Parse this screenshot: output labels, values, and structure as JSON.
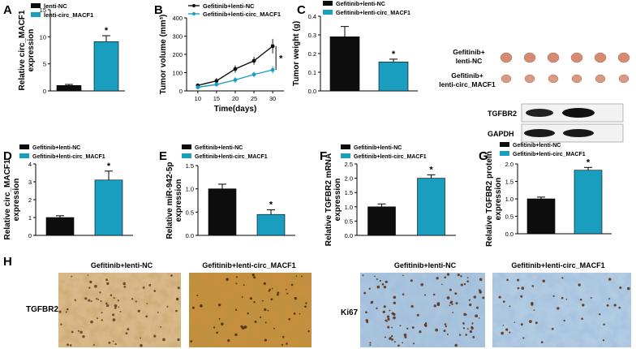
{
  "colors": {
    "black": "#0d0d0d",
    "teal": "#199ec0",
    "ihc_bg_tgf": "#d9b784",
    "ihc_bg_ki": "#a9c6de"
  },
  "panel_letters": [
    "A",
    "B",
    "C",
    "D",
    "E",
    "F",
    "G",
    "H"
  ],
  "chart_data": [
    {
      "type": "bar",
      "panel": "A",
      "ylabel": "Relative circ_MACF1 expression",
      "ylim": [
        0,
        15
      ],
      "yticks": [
        "0",
        "5",
        "10",
        "15"
      ],
      "legend": [
        "lenti-NC",
        "lenti-circ_MACF1"
      ],
      "categories": [
        "lenti-NC",
        "lenti-circ_MACF1"
      ],
      "values": [
        1.0,
        9.1
      ],
      "errors": [
        0.2,
        1.1
      ],
      "significance": "*"
    },
    {
      "type": "line",
      "panel": "B",
      "xlabel": "Time(days)",
      "ylabel": "Tumor volume (mm³)",
      "xlim": [
        10,
        30
      ],
      "ylim": [
        0,
        400
      ],
      "xticks": [
        "10",
        "15",
        "20",
        "25",
        "30"
      ],
      "yticks": [
        "0",
        "100",
        "200",
        "300",
        "400"
      ],
      "x": [
        10,
        15,
        20,
        25,
        30
      ],
      "series": [
        {
          "name": "Gefitinib+lenti-NC",
          "values": [
            30,
            55,
            120,
            165,
            245
          ],
          "errors": [
            10,
            15,
            20,
            22,
            40
          ]
        },
        {
          "name": "Gefitinib+lenti-circ_MACF1",
          "values": [
            20,
            35,
            60,
            90,
            115
          ],
          "errors": [
            8,
            10,
            15,
            15,
            20
          ]
        }
      ],
      "significance": "*"
    },
    {
      "type": "bar",
      "panel": "C",
      "ylabel": "Tumor weight (g)",
      "ylim": [
        0,
        0.4
      ],
      "yticks": [
        "0.0",
        "0.1",
        "0.2",
        "0.3",
        "0.4"
      ],
      "legend": [
        "Gefitinib+lenti-NC",
        "Gefitinib+lenti-circ_MACF1"
      ],
      "categories": [
        "Gefitinib+lenti-NC",
        "Gefitinib+lenti-circ_MACF1"
      ],
      "values": [
        0.29,
        0.155
      ],
      "errors": [
        0.055,
        0.015
      ],
      "significance": "*"
    },
    {
      "type": "bar",
      "panel": "D",
      "ylabel": "Relative circ_MACF1 expression",
      "ylim": [
        0,
        4
      ],
      "yticks": [
        "0",
        "1",
        "2",
        "3",
        "4"
      ],
      "legend": [
        "Gefitinib+lenti-NC",
        "Gefitinib+lenti-circ_MACF1"
      ],
      "categories": [
        "Gefitinib+lenti-NC",
        "Gefitinib+lenti-circ_MACF1"
      ],
      "values": [
        1.0,
        3.1
      ],
      "errors": [
        0.1,
        0.5
      ],
      "significance": "*"
    },
    {
      "type": "bar",
      "panel": "E",
      "ylabel": "Relative miR-942-5p expression",
      "ylim": [
        0,
        1.5
      ],
      "yticks": [
        "0.0",
        "0.5",
        "1.0",
        "1.5"
      ],
      "legend": [
        "Gefitinib+lenti-NC",
        "Gefitinib+lenti-circ_MACF1"
      ],
      "categories": [
        "Gefitinib+lenti-NC",
        "Gefitinib+lenti-circ_MACF1"
      ],
      "values": [
        1.0,
        0.45
      ],
      "errors": [
        0.1,
        0.1
      ],
      "significance": "*"
    },
    {
      "type": "bar",
      "panel": "F",
      "ylabel": "Relative TGFBR2 mRNA expression",
      "ylim": [
        0,
        2.5
      ],
      "yticks": [
        "0.0",
        "0.5",
        "1.0",
        "1.5",
        "2.0",
        "2.5"
      ],
      "legend": [
        "Gefitinib+lenti-NC",
        "Gefitinib+lenti-circ_MACF1"
      ],
      "categories": [
        "Gefitinib+lenti-NC",
        "Gefitinib+lenti-circ_MACF1"
      ],
      "values": [
        1.0,
        2.0
      ],
      "errors": [
        0.1,
        0.12
      ],
      "significance": "*"
    },
    {
      "type": "bar",
      "panel": "G",
      "ylabel": "Relative TGFBR2 protein expression",
      "ylim": [
        0,
        2.0
      ],
      "yticks": [
        "0.0",
        "0.5",
        "1.0",
        "1.5",
        "2.0"
      ],
      "legend": [
        "Gefitinib+lenti-NC",
        "Gefitinib+lenti-circ_MACF1"
      ],
      "categories": [
        "Gefitinib+lenti-NC",
        "Gefitinib+lenti-circ_MACF1"
      ],
      "values": [
        1.0,
        1.82
      ],
      "errors": [
        0.05,
        0.08
      ],
      "significance": "*"
    }
  ],
  "tumor_photo": {
    "row_labels": [
      "Gefitinib+\nlenti-NC",
      "Gefitinib+\nlenti-circ_MACF1"
    ],
    "tumors_per_row": 6
  },
  "western": {
    "bands": [
      "TGFBR2",
      "GAPDH"
    ]
  },
  "ihc": {
    "tgfbr2_label": "TGFBR2",
    "ki67_label": "Ki67",
    "col_labels": [
      "Gefitinib+lenti-NC",
      "Gefitinib+lenti-circ_MACF1",
      "Gefitinib+lenti-NC",
      "Gefitinib+lenti-circ_MACF1"
    ]
  }
}
